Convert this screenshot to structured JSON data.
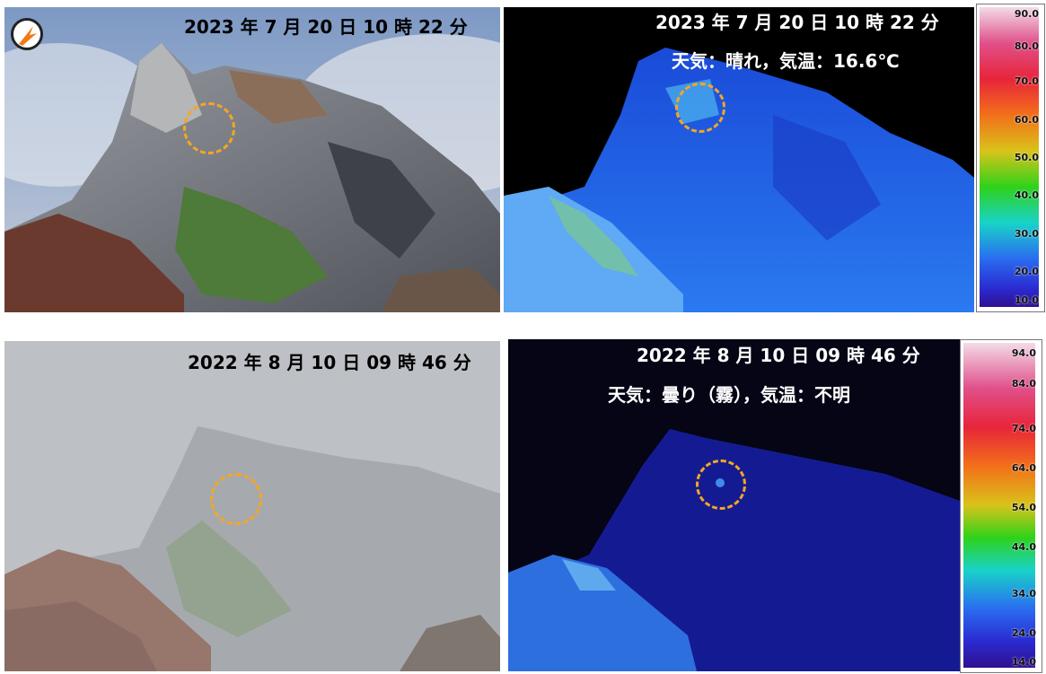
{
  "panels": {
    "top_visible": {
      "timestamp": "2023 年 7 月 20 日 10 時 22 分"
    },
    "top_thermal": {
      "timestamp": "2023 年 7 月 20 日 10 時 22 分",
      "weather": "天気：晴れ，気温：16.6℃",
      "scale": [
        "90.0",
        "80.0",
        "70.0",
        "60.0",
        "50.0",
        "40.0",
        "30.0",
        "20.0",
        "10.0"
      ]
    },
    "bottom_visible": {
      "timestamp": "2022 年 8 月 10 日 09 時 46 分"
    },
    "bottom_thermal": {
      "timestamp": "2022 年 8 月 10 日 09 時 46 分",
      "weather": "天気：曇り（霧），気温：不明",
      "scale": [
        "94.0",
        "84.0",
        "74.0",
        "64.0",
        "54.0",
        "44.0",
        "34.0",
        "24.0",
        "14.0"
      ]
    }
  },
  "colors": {
    "marker": "#f5a623"
  },
  "icons": {
    "logo": "agency-logo-icon"
  }
}
